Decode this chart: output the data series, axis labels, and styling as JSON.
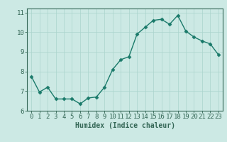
{
  "x": [
    0,
    1,
    2,
    3,
    4,
    5,
    6,
    7,
    8,
    9,
    10,
    11,
    12,
    13,
    14,
    15,
    16,
    17,
    18,
    19,
    20,
    21,
    22,
    23
  ],
  "y": [
    7.75,
    6.95,
    7.2,
    6.6,
    6.6,
    6.6,
    6.35,
    6.65,
    6.7,
    7.2,
    8.1,
    8.6,
    8.75,
    9.9,
    10.25,
    10.6,
    10.65,
    10.4,
    10.85,
    10.05,
    9.75,
    9.55,
    9.4,
    8.85
  ],
  "line_color": "#1a7a6a",
  "marker": "D",
  "markersize": 2.5,
  "linewidth": 1.0,
  "bg_color": "#cce9e4",
  "grid_color": "#aad4cc",
  "xlabel": "Humidex (Indice chaleur)",
  "xlabel_fontsize": 7,
  "tick_fontsize": 6.5,
  "xlim": [
    -0.5,
    23.5
  ],
  "ylim": [
    6.0,
    11.2
  ],
  "yticks": [
    6,
    7,
    8,
    9,
    10,
    11
  ],
  "xticks": [
    0,
    1,
    2,
    3,
    4,
    5,
    6,
    7,
    8,
    9,
    10,
    11,
    12,
    13,
    14,
    15,
    16,
    17,
    18,
    19,
    20,
    21,
    22,
    23
  ],
  "xtick_labels": [
    "0",
    "1",
    "2",
    "3",
    "4",
    "5",
    "6",
    "7",
    "8",
    "9",
    "10",
    "11",
    "12",
    "13",
    "14",
    "15",
    "16",
    "17",
    "18",
    "19",
    "20",
    "21",
    "22",
    "23"
  ],
  "spine_color": "#336655",
  "tick_color": "#336655",
  "text_color": "#336655"
}
